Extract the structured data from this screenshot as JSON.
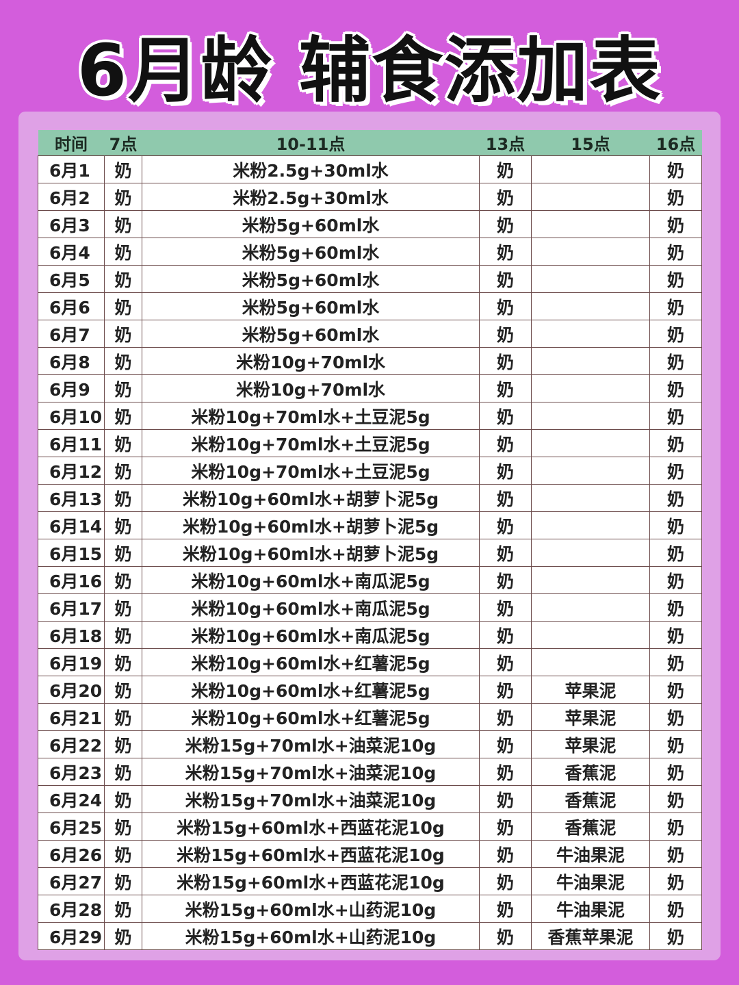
{
  "title": "6月龄 辅食添加表",
  "colors": {
    "background": "#d35ddc",
    "panel": "#dfa1e6",
    "header": "#8fc9ad"
  },
  "headers": [
    "时间",
    "7点",
    "10-11点",
    "13点",
    "15点",
    "16点"
  ],
  "rows": [
    [
      "6月1",
      "奶",
      "米粉2.5g+30ml水",
      "奶",
      "",
      "奶"
    ],
    [
      "6月2",
      "奶",
      "米粉2.5g+30ml水",
      "奶",
      "",
      "奶"
    ],
    [
      "6月3",
      "奶",
      "米粉5g+60ml水",
      "奶",
      "",
      "奶"
    ],
    [
      "6月4",
      "奶",
      "米粉5g+60ml水",
      "奶",
      "",
      "奶"
    ],
    [
      "6月5",
      "奶",
      "米粉5g+60ml水",
      "奶",
      "",
      "奶"
    ],
    [
      "6月6",
      "奶",
      "米粉5g+60ml水",
      "奶",
      "",
      "奶"
    ],
    [
      "6月7",
      "奶",
      "米粉5g+60ml水",
      "奶",
      "",
      "奶"
    ],
    [
      "6月8",
      "奶",
      "米粉10g+70ml水",
      "奶",
      "",
      "奶"
    ],
    [
      "6月9",
      "奶",
      "米粉10g+70ml水",
      "奶",
      "",
      "奶"
    ],
    [
      "6月10",
      "奶",
      "米粉10g+70ml水+土豆泥5g",
      "奶",
      "",
      "奶"
    ],
    [
      "6月11",
      "奶",
      "米粉10g+70ml水+土豆泥5g",
      "奶",
      "",
      "奶"
    ],
    [
      "6月12",
      "奶",
      "米粉10g+70ml水+土豆泥5g",
      "奶",
      "",
      "奶"
    ],
    [
      "6月13",
      "奶",
      "米粉10g+60ml水+胡萝卜泥5g",
      "奶",
      "",
      "奶"
    ],
    [
      "6月14",
      "奶",
      "米粉10g+60ml水+胡萝卜泥5g",
      "奶",
      "",
      "奶"
    ],
    [
      "6月15",
      "奶",
      "米粉10g+60ml水+胡萝卜泥5g",
      "奶",
      "",
      "奶"
    ],
    [
      "6月16",
      "奶",
      "米粉10g+60ml水+南瓜泥5g",
      "奶",
      "",
      "奶"
    ],
    [
      "6月17",
      "奶",
      "米粉10g+60ml水+南瓜泥5g",
      "奶",
      "",
      "奶"
    ],
    [
      "6月18",
      "奶",
      "米粉10g+60ml水+南瓜泥5g",
      "奶",
      "",
      "奶"
    ],
    [
      "6月19",
      "奶",
      "米粉10g+60ml水+红薯泥5g",
      "奶",
      "",
      "奶"
    ],
    [
      "6月20",
      "奶",
      "米粉10g+60ml水+红薯泥5g",
      "奶",
      "苹果泥",
      "奶"
    ],
    [
      "6月21",
      "奶",
      "米粉10g+60ml水+红薯泥5g",
      "奶",
      "苹果泥",
      "奶"
    ],
    [
      "6月22",
      "奶",
      "米粉15g+70ml水+油菜泥10g",
      "奶",
      "苹果泥",
      "奶"
    ],
    [
      "6月23",
      "奶",
      "米粉15g+70ml水+油菜泥10g",
      "奶",
      "香蕉泥",
      "奶"
    ],
    [
      "6月24",
      "奶",
      "米粉15g+70ml水+油菜泥10g",
      "奶",
      "香蕉泥",
      "奶"
    ],
    [
      "6月25",
      "奶",
      "米粉15g+60ml水+西蓝花泥10g",
      "奶",
      "香蕉泥",
      "奶"
    ],
    [
      "6月26",
      "奶",
      "米粉15g+60ml水+西蓝花泥10g",
      "奶",
      "牛油果泥",
      "奶"
    ],
    [
      "6月27",
      "奶",
      "米粉15g+60ml水+西蓝花泥10g",
      "奶",
      "牛油果泥",
      "奶"
    ],
    [
      "6月28",
      "奶",
      "米粉15g+60ml水+山药泥10g",
      "奶",
      "牛油果泥",
      "奶"
    ],
    [
      "6月29",
      "奶",
      "米粉15g+60ml水+山药泥10g",
      "奶",
      "香蕉苹果泥",
      "奶"
    ]
  ]
}
